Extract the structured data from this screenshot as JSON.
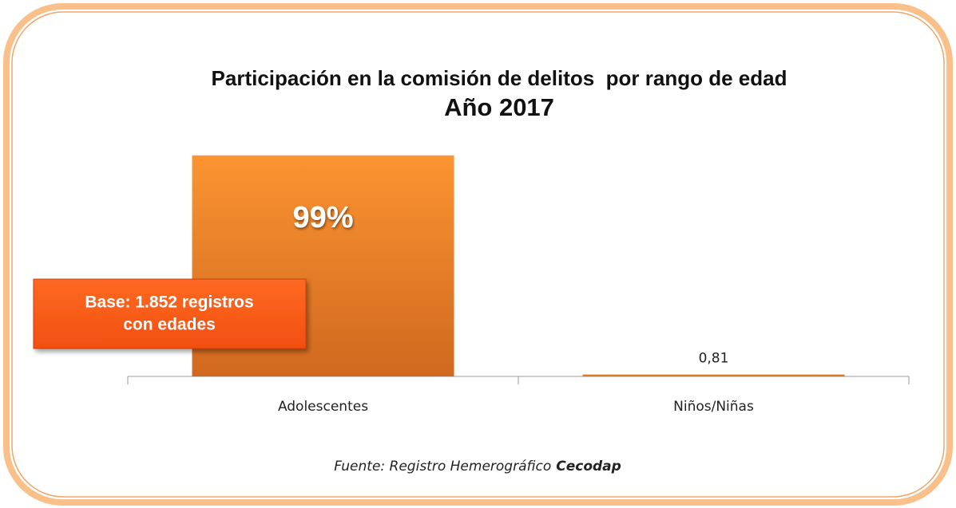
{
  "chart_data": {
    "type": "bar",
    "title": "Participación en la comisión de delitos  por rango de edad",
    "subtitle": "Año 2017",
    "categories": [
      "Adolescentes",
      "Niños/Niñas"
    ],
    "values": [
      99,
      0.81
    ],
    "value_labels": [
      "99%",
      "0,81"
    ],
    "color": "#f08a2c",
    "annotation": [
      "Base: 1.852 registros",
      "con edades"
    ],
    "source": "Fuente: Registro Hemerográfico",
    "source_emphasis": "Cecodap"
  }
}
